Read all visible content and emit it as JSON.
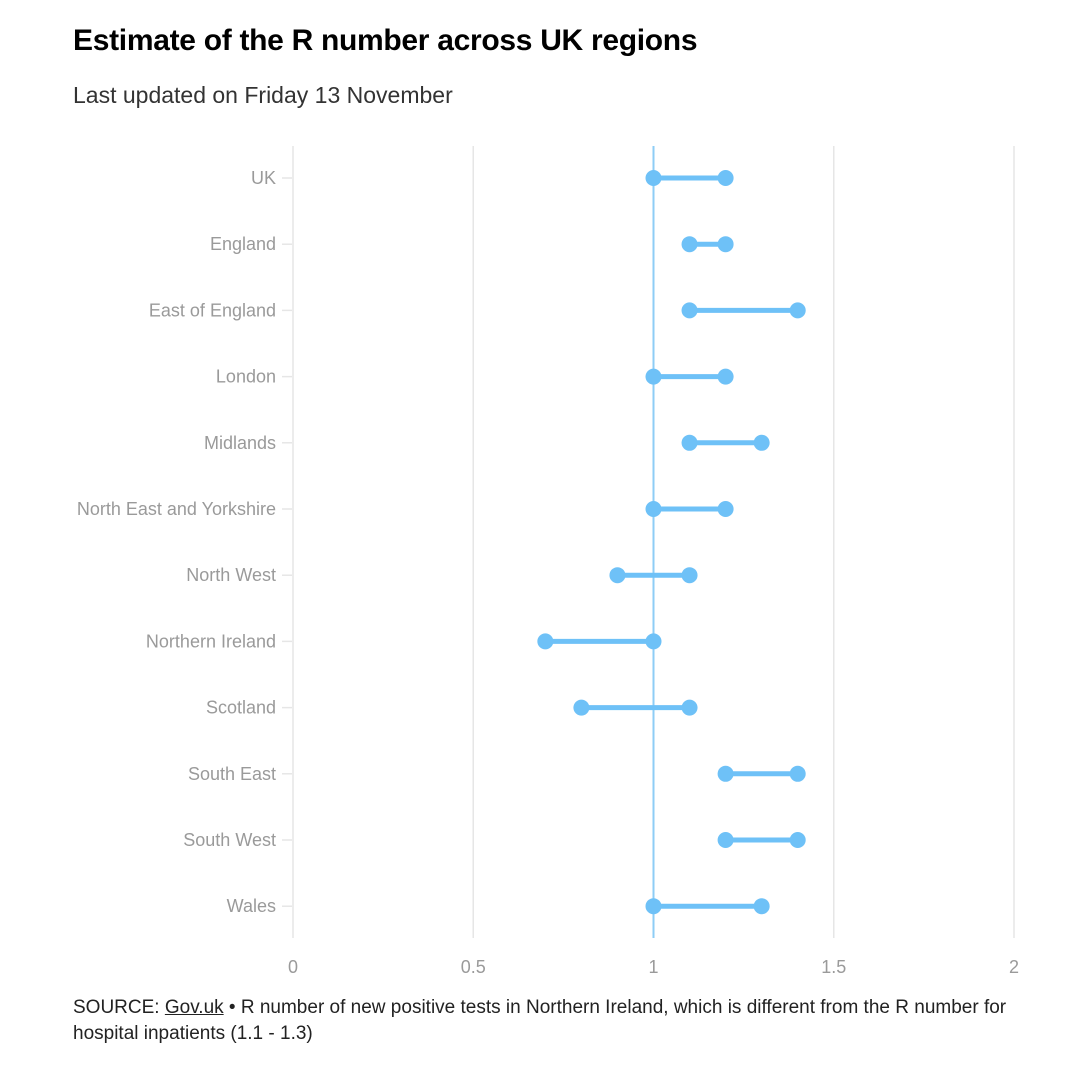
{
  "header": {
    "title": "Estimate of the R number across UK regions",
    "subtitle": "Last updated on Friday 13 November"
  },
  "chart_data": {
    "type": "dumbbell",
    "categories": [
      "UK",
      "England",
      "East of England",
      "London",
      "Midlands",
      "North East and Yorkshire",
      "North West",
      "Northern Ireland",
      "Scotland",
      "South East",
      "South West",
      "Wales"
    ],
    "series": [
      {
        "values": [
          1.0,
          1.1,
          1.1,
          1.0,
          1.1,
          1.0,
          0.9,
          0.7,
          0.8,
          1.2,
          1.2,
          1.0
        ]
      },
      {
        "values": [
          1.2,
          1.2,
          1.4,
          1.2,
          1.3,
          1.2,
          1.1,
          1.0,
          1.1,
          1.4,
          1.4,
          1.3
        ]
      }
    ],
    "xlim": [
      0,
      2
    ],
    "xticks": [
      "0",
      "0.5",
      "1",
      "1.5",
      "2"
    ],
    "xtick_values": [
      0,
      0.5,
      1,
      1.5,
      2
    ],
    "reference_line": 1,
    "colors": {
      "dot": "#6ec1f7",
      "reference": "#8ecdf6",
      "grid": "#e6e6e6",
      "label": "#9a9a9a"
    }
  },
  "footer": {
    "source_prefix": "SOURCE: ",
    "source_link": "Gov.uk",
    "note": " • R number of new positive tests in Northern Ireland, which is different from the R number for hospital inpatients (1.1 - 1.3)"
  }
}
